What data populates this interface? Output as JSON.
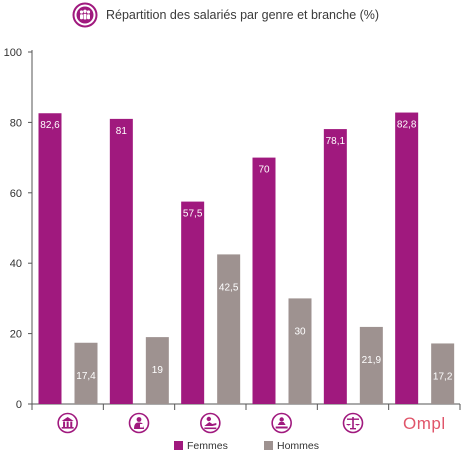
{
  "header": {
    "icon": "people-group-icon"
  },
  "chart_data": {
    "type": "bar",
    "title": "Répartition des salariés par genre et branche (%)",
    "xlabel": "",
    "ylabel": "",
    "ylim": [
      0,
      100
    ],
    "yticks": [
      0,
      20,
      40,
      60,
      80,
      100
    ],
    "grid": false,
    "legend_position": "bottom",
    "categories": [
      "bank-building-icon",
      "insurance-person-icon",
      "real-estate-agent-icon",
      "notary-seal-icon",
      "justice-scales-icon",
      "Ompl"
    ],
    "series": [
      {
        "name": "Femmes",
        "color": "#a0197e",
        "values": [
          82.6,
          81,
          57.5,
          70,
          78.1,
          82.8
        ],
        "labels": [
          "82,6",
          "81",
          "57,5",
          "70",
          "78,1",
          "82,8"
        ]
      },
      {
        "name": "Hommes",
        "color": "#9e9290",
        "values": [
          17.4,
          19,
          42.5,
          30,
          21.9,
          17.2
        ],
        "labels": [
          "17,4",
          "19",
          "42,5",
          "30",
          "21,9",
          "17,2"
        ]
      }
    ]
  }
}
